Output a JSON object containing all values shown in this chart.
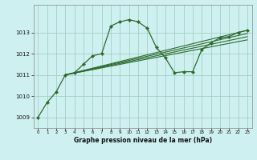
{
  "title": "Graphe pression niveau de la mer (hPa)",
  "bg_color": "#cff0f0",
  "line_color": "#2d6a2d",
  "grid_color": "#99ccbb",
  "xlim": [
    -0.5,
    23.5
  ],
  "ylim": [
    1008.5,
    1014.3
  ],
  "yticks": [
    1009,
    1010,
    1011,
    1012,
    1013
  ],
  "xticks": [
    0,
    1,
    2,
    3,
    4,
    5,
    6,
    7,
    8,
    9,
    10,
    11,
    12,
    13,
    14,
    15,
    16,
    17,
    18,
    19,
    20,
    21,
    22,
    23
  ],
  "main_x": [
    0,
    1,
    2,
    3,
    4,
    5,
    6,
    7,
    8,
    9,
    10,
    11,
    12,
    13,
    14,
    15,
    16,
    17,
    18,
    19,
    20,
    21,
    22,
    23
  ],
  "main_y": [
    1009.0,
    1009.7,
    1010.2,
    1011.0,
    1011.1,
    1011.5,
    1011.9,
    1012.0,
    1013.3,
    1013.5,
    1013.6,
    1013.5,
    1013.2,
    1012.3,
    1011.8,
    1011.1,
    1011.15,
    1011.15,
    1012.2,
    1012.5,
    1012.75,
    1012.8,
    1013.0,
    1013.1
  ],
  "line1_x": [
    3,
    23
  ],
  "line1_y": [
    1011.0,
    1013.1
  ],
  "line2_x": [
    3,
    23
  ],
  "line2_y": [
    1011.0,
    1012.95
  ],
  "line3_x": [
    3,
    23
  ],
  "line3_y": [
    1011.0,
    1012.8
  ],
  "line4_x": [
    3,
    23
  ],
  "line4_y": [
    1011.0,
    1012.65
  ]
}
